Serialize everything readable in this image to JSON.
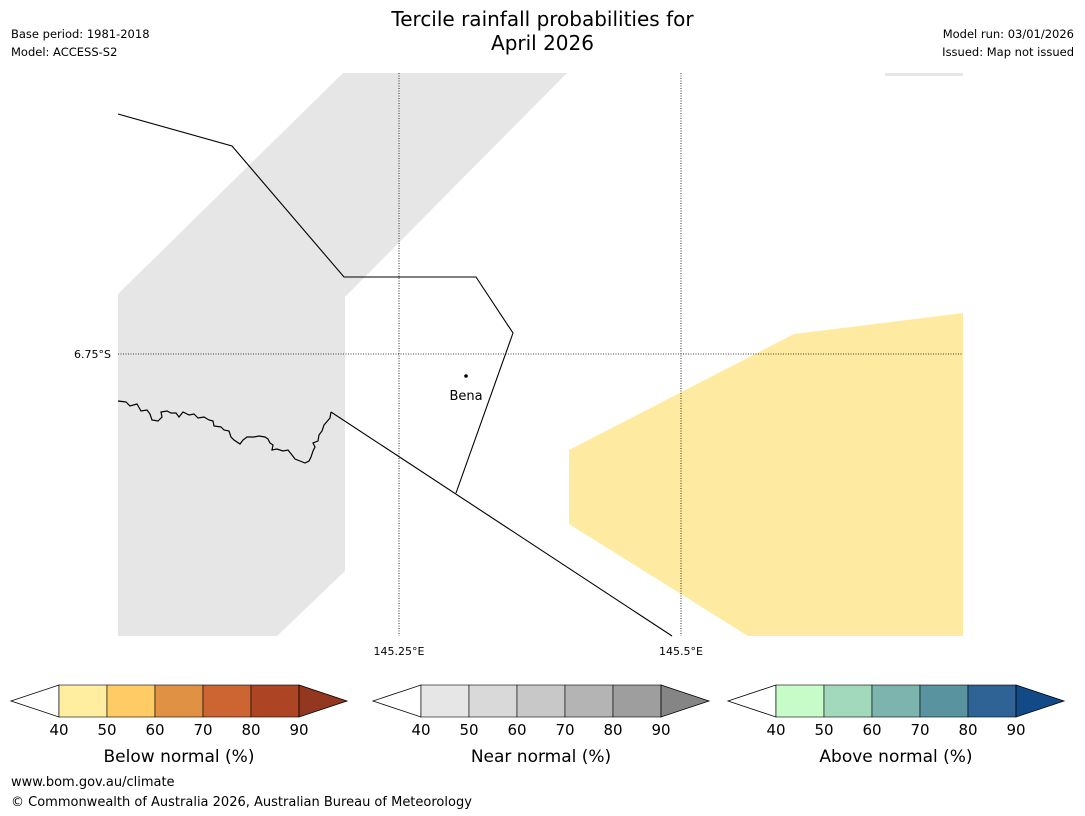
{
  "header": {
    "title_line1": "Tercile rainfall probabilities for",
    "title_line2": "April 2026",
    "base_period": "Base period: 1981-2018",
    "model": "Model: ACCESS-S2",
    "model_run": "Model run: 03/01/2026",
    "issued": "Issued: Map not issued"
  },
  "map": {
    "lat_label": "6.75°S",
    "lon_labels": [
      "145.25°E",
      "145.5°E"
    ],
    "place": "Bena",
    "colors": {
      "near_normal_region": "#e6e6e6",
      "below_normal_region": "#feeaa0",
      "boundary": "#000000"
    }
  },
  "legends": [
    {
      "label": "Below normal (%)",
      "ticks": [
        "40",
        "50",
        "60",
        "70",
        "80",
        "90"
      ],
      "colors": [
        "#ffeda0",
        "#fecb65",
        "#e09143",
        "#cd6533",
        "#ad4424"
      ],
      "over_color": "#943721"
    },
    {
      "label": "Near normal (%)",
      "ticks": [
        "40",
        "50",
        "60",
        "70",
        "80",
        "90"
      ],
      "colors": [
        "#e6e6e6",
        "#d9d9d9",
        "#c8c8c8",
        "#b4b4b4",
        "#9e9e9e"
      ],
      "over_color": "#858585"
    },
    {
      "label": "Above normal (%)",
      "ticks": [
        "40",
        "50",
        "60",
        "70",
        "80",
        "90"
      ],
      "colors": [
        "#c7fcc8",
        "#a2d8bb",
        "#7db4ae",
        "#5993a0",
        "#2f6396"
      ],
      "over_color": "#114a86"
    }
  ],
  "footer": {
    "website": "www.bom.gov.au/climate",
    "copyright": "© Commonwealth of Australia 2026, Australian Bureau of Meteorology"
  }
}
